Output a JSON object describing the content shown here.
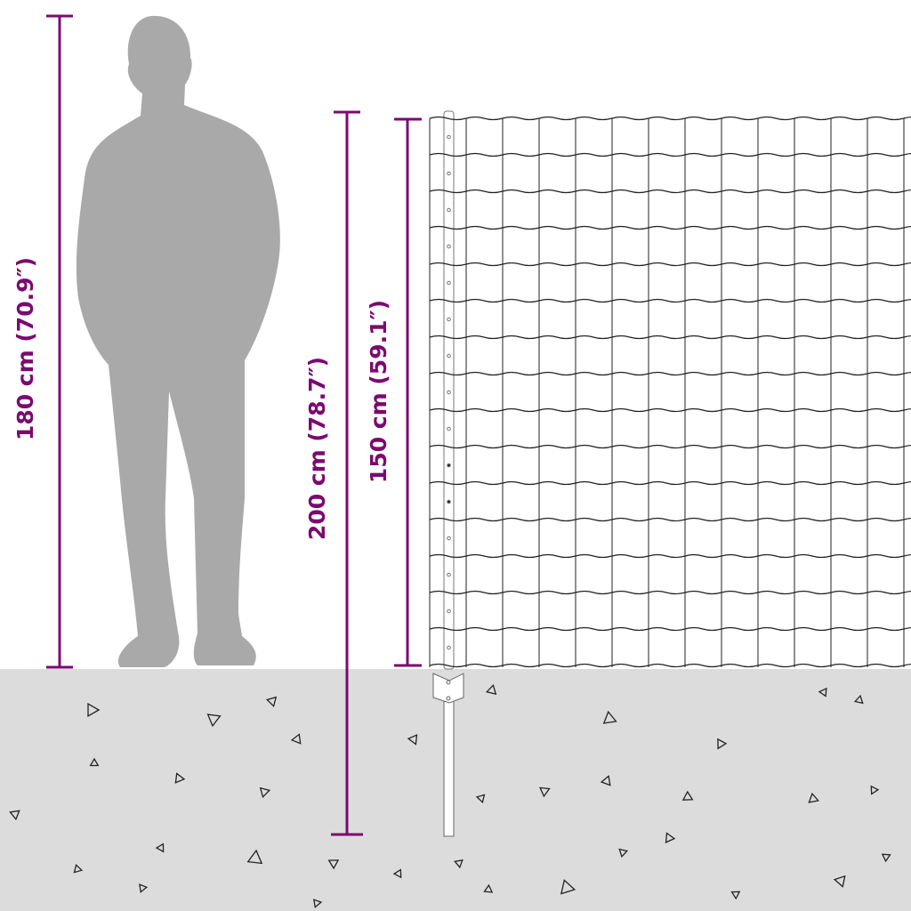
{
  "dimensions": {
    "person_height": "180 cm (70.9″)",
    "post_length": "200 cm (78.7″)",
    "fence_height": "150 cm (59.1″)"
  },
  "colors": {
    "dimension": "#7b0a70",
    "silhouette": "#a9a9a9",
    "ground": "#dcdcdc",
    "wire": "#222222"
  }
}
